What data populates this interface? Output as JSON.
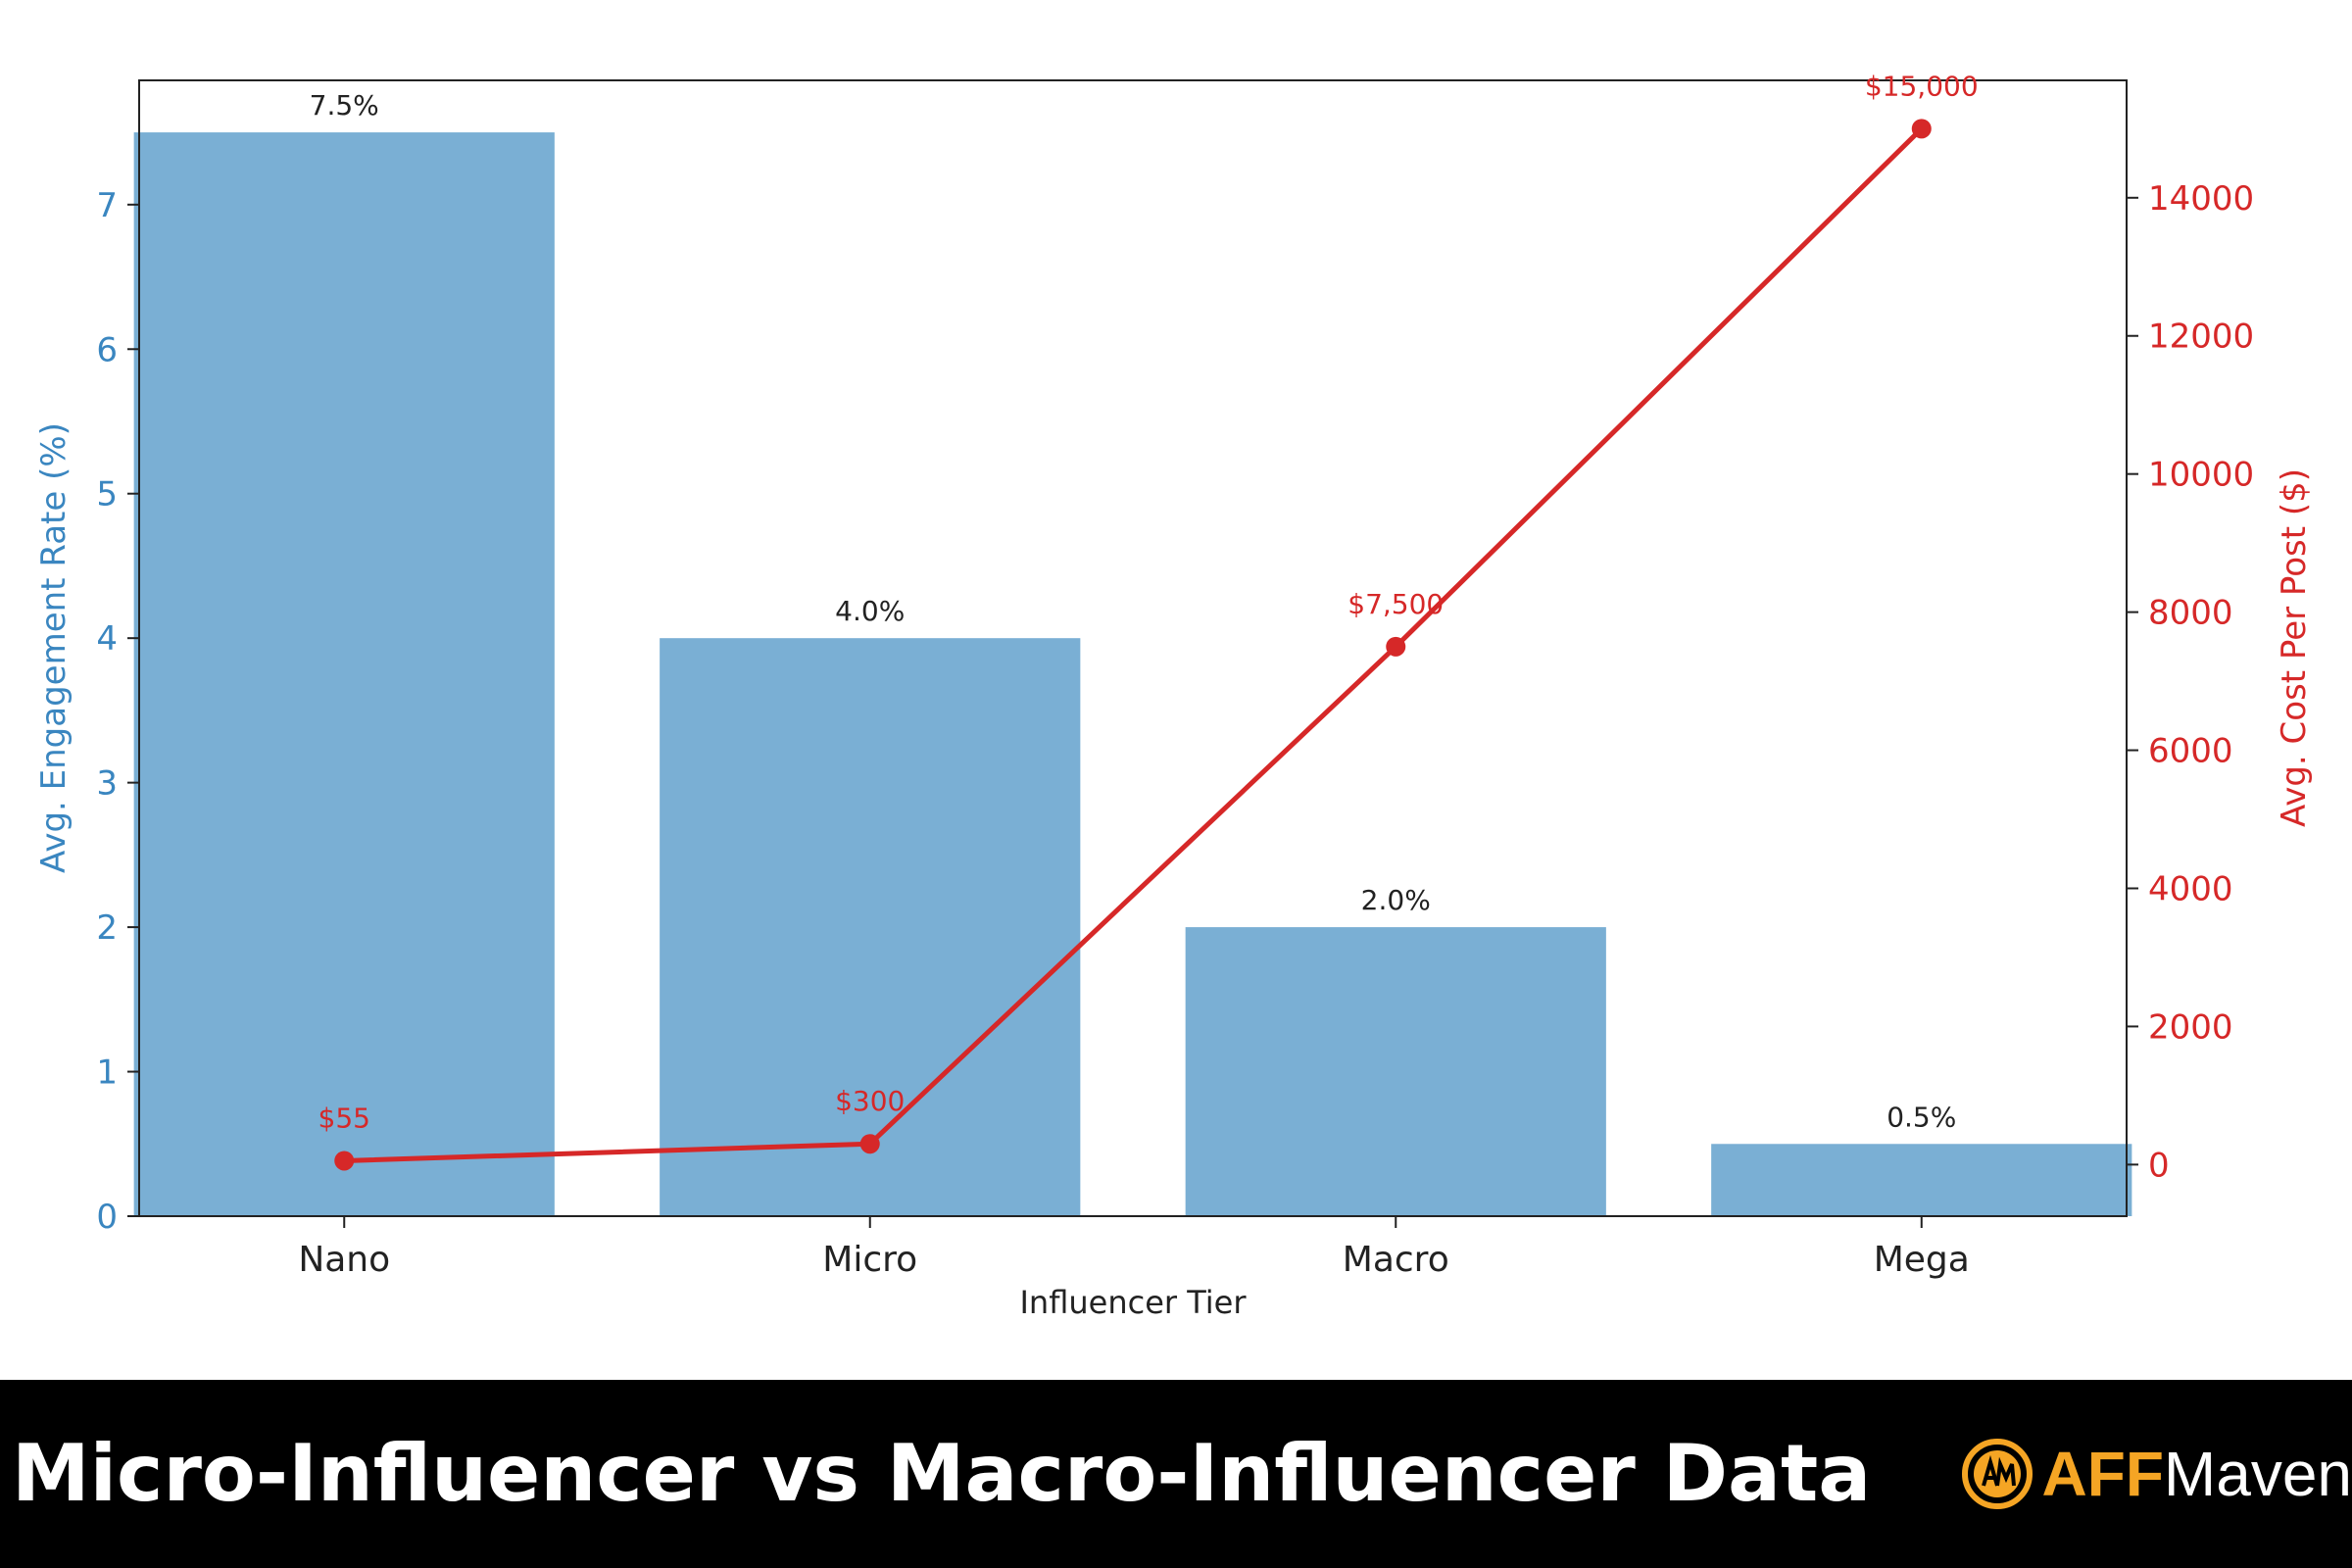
{
  "chart_data": {
    "type": "bar",
    "categories": [
      "Nano",
      "Micro",
      "Macro",
      "Mega"
    ],
    "xlabel": "Influencer Tier",
    "series": [
      {
        "kind": "bar",
        "axis": "left",
        "values": [
          7.5,
          4.0,
          2.0,
          0.5
        ],
        "labels": [
          "7.5%",
          "4.0%",
          "2.0%",
          "0.5%"
        ]
      },
      {
        "kind": "line",
        "axis": "right",
        "values": [
          55,
          300,
          7500,
          15000
        ],
        "labels": [
          "$55",
          "$300",
          "$7,500",
          "$15,000"
        ]
      }
    ],
    "left_axis": {
      "label": "Avg. Engagement Rate (%)",
      "ylim": [
        0,
        7.86
      ],
      "ticks": [
        0,
        1,
        2,
        3,
        4,
        5,
        6,
        7
      ],
      "color": "#3a86c0"
    },
    "right_axis": {
      "label": "Avg. Cost Per Post ($)",
      "ylim": [
        -747,
        15700
      ],
      "ticks": [
        0,
        2000,
        4000,
        6000,
        8000,
        10000,
        12000,
        14000
      ],
      "color": "#d62828"
    },
    "bar_color": "#7aafd4",
    "line_color": "#d62828",
    "grid": false
  },
  "footer": {
    "title": "Micro-Influencer vs Macro-Influencer Data",
    "brand_part1": "AFF",
    "brand_part2": "Maven",
    "brand_color": "#f5a524"
  }
}
